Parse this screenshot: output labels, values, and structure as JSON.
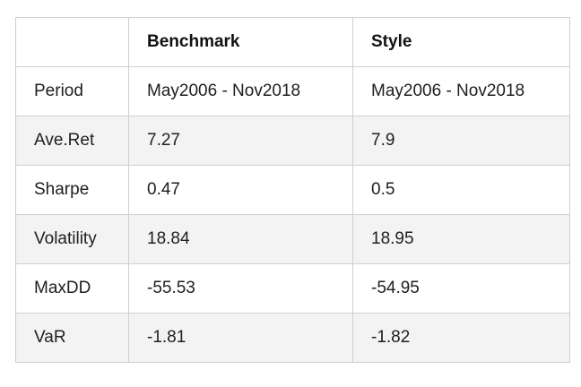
{
  "table": {
    "header": [
      "",
      "Benchmark",
      "Style"
    ],
    "rows": [
      {
        "label": "Period",
        "benchmark": "May2006 - Nov2018",
        "style": "May2006 - Nov2018"
      },
      {
        "label": "Ave.Ret",
        "benchmark": "7.27",
        "style": "7.9"
      },
      {
        "label": "Sharpe",
        "benchmark": "0.47",
        "style": "0.5"
      },
      {
        "label": "Volatility",
        "benchmark": "18.84",
        "style": "18.95"
      },
      {
        "label": "MaxDD",
        "benchmark": "-55.53",
        "style": "-54.95"
      },
      {
        "label": "VaR",
        "benchmark": "-1.81",
        "style": "-1.82"
      }
    ]
  },
  "colors": {
    "border": "#cfcfcf",
    "alt_row": "#f3f3f3",
    "text": "#202020"
  }
}
